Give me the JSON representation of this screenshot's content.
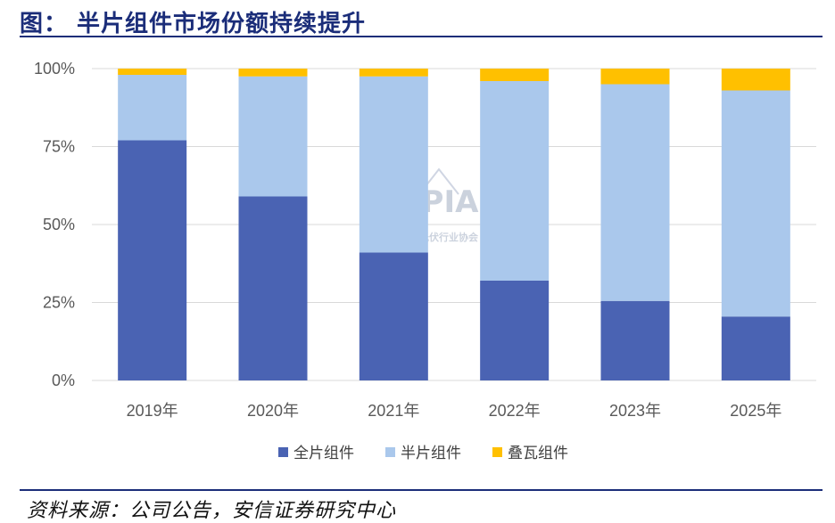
{
  "header": {
    "title": "图：  半片组件市场份额持续提升"
  },
  "footer": {
    "source": "资料来源：公司公告，安信证券研究中心"
  },
  "watermark": {
    "main": "CPIA",
    "sub": "中国光伏行业协会"
  },
  "colors": {
    "full": "#4a63b3",
    "half": "#aac8ec",
    "shingled": "#ffc000",
    "grid": "#d9d9d9",
    "title": "#1b2d79"
  },
  "chart_data": {
    "type": "bar",
    "stacked": true,
    "categories": [
      "2019年",
      "2020年",
      "2021年",
      "2022年",
      "2023年",
      "2025年"
    ],
    "series": [
      {
        "name": "全片组件",
        "values": [
          77,
          59,
          41,
          32,
          25.5,
          20.5
        ],
        "color": "#4a63b3"
      },
      {
        "name": "半片组件",
        "values": [
          21,
          38.5,
          56.5,
          64,
          69.5,
          72.5
        ],
        "color": "#aac8ec"
      },
      {
        "name": "叠瓦组件",
        "values": [
          2,
          2.5,
          2.5,
          4,
          5,
          7
        ],
        "color": "#ffc000"
      }
    ],
    "ylim": [
      0,
      100
    ],
    "yticks": [
      "0%",
      "25%",
      "50%",
      "75%",
      "100%"
    ],
    "ytick_values": [
      0,
      25,
      50,
      75,
      100
    ],
    "legend": "bottom",
    "grid": true
  }
}
